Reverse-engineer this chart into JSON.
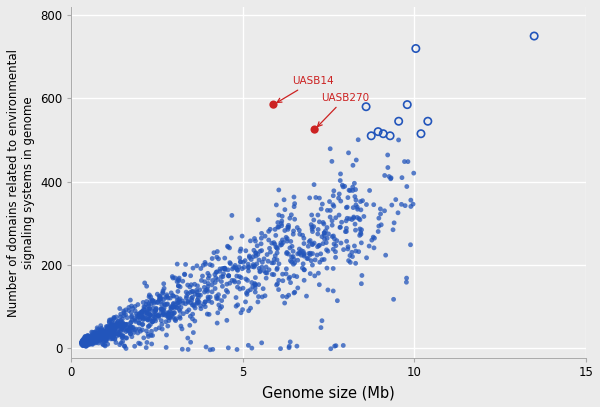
{
  "title": "",
  "xlabel": "Genome size (Mb)",
  "ylabel": "Number of domains related to environmental\nsignaling systems in genome",
  "xlim": [
    0,
    15
  ],
  "ylim": [
    -25,
    820
  ],
  "xticks": [
    0,
    5,
    10,
    15
  ],
  "yticks": [
    0,
    200,
    400,
    600,
    800
  ],
  "background_color": "#EBEBEB",
  "grid_color": "#FFFFFF",
  "blue_filled_color": "#2255BB",
  "blue_open_color": "#2255BB",
  "red_color": "#CC2222",
  "blue_open": [
    [
      8.6,
      580
    ],
    [
      8.75,
      510
    ],
    [
      8.95,
      520
    ],
    [
      9.1,
      515
    ],
    [
      9.3,
      510
    ],
    [
      9.55,
      545
    ],
    [
      9.8,
      585
    ],
    [
      10.05,
      720
    ],
    [
      10.2,
      515
    ],
    [
      10.4,
      545
    ],
    [
      13.5,
      750
    ]
  ],
  "red_filled": [
    [
      5.9,
      585,
      "UASB14"
    ],
    [
      7.1,
      525,
      "UASB270"
    ]
  ],
  "annotation_color": "#CC2222",
  "figsize": [
    6.0,
    4.07
  ],
  "dpi": 100,
  "random_seed": 42,
  "n_main": 1200,
  "n_small": 300
}
